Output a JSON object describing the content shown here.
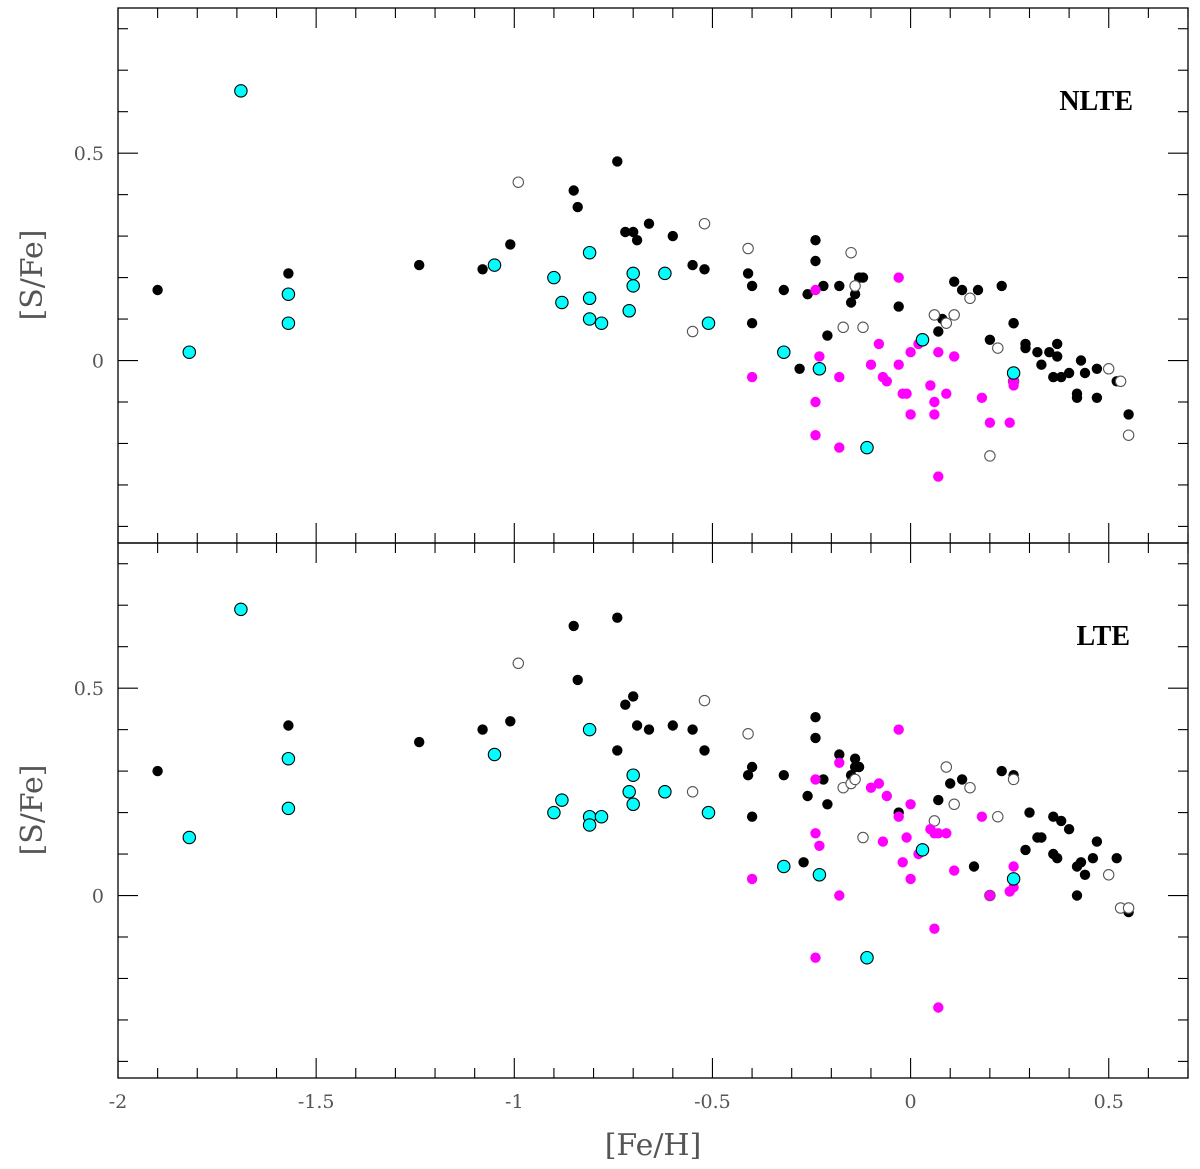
{
  "chart_data": [
    {
      "type": "scatter",
      "panel_label": "NLTE",
      "xlabel": "[Fe/H]",
      "ylabel": "[S/Fe]",
      "xlim": [
        -2.0,
        0.7
      ],
      "ylim": [
        -0.44,
        0.85
      ],
      "xticks": [
        "-2",
        "-1.5",
        "-1",
        "-0.5",
        "0",
        "0.5"
      ],
      "yticks": [
        "0",
        "0.5"
      ],
      "series": [
        {
          "name": "black-filled",
          "color": "#000000",
          "x": [
            -1.9,
            -1.57,
            -1.24,
            -1.08,
            -1.01,
            -0.85,
            -0.84,
            -0.74,
            -0.72,
            -0.7,
            -0.69,
            -0.66,
            -0.6,
            -0.55,
            -0.52,
            -0.41,
            -0.4,
            -0.4,
            -0.32,
            -0.28,
            -0.26,
            -0.24,
            -0.24,
            -0.22,
            -0.21,
            -0.18,
            -0.15,
            -0.14,
            -0.14,
            -0.13,
            -0.12,
            -0.03,
            0.07,
            0.08,
            0.11,
            0.13,
            0.17,
            0.2,
            0.23,
            0.26,
            0.26,
            0.29,
            0.29,
            0.32,
            0.33,
            0.35,
            0.36,
            0.37,
            0.37,
            0.38,
            0.4,
            0.42,
            0.42,
            0.43,
            0.44,
            0.47,
            0.47,
            0.52,
            0.55
          ],
          "y": [
            0.17,
            0.21,
            0.23,
            0.22,
            0.28,
            0.41,
            0.37,
            0.48,
            0.31,
            0.31,
            0.29,
            0.33,
            0.3,
            0.23,
            0.22,
            0.21,
            0.18,
            0.09,
            0.17,
            -0.02,
            0.16,
            0.29,
            0.24,
            0.18,
            0.06,
            0.18,
            0.14,
            0.18,
            0.16,
            0.2,
            0.2,
            0.13,
            0.07,
            0.1,
            0.19,
            0.17,
            0.17,
            0.05,
            0.18,
            0.09,
            0.09,
            0.04,
            0.03,
            0.02,
            -0.01,
            0.02,
            -0.04,
            0.04,
            0.01,
            -0.04,
            -0.03,
            -0.08,
            -0.09,
            0.0,
            -0.03,
            -0.02,
            -0.09,
            -0.05,
            -0.13
          ]
        },
        {
          "name": "open",
          "color": "#ffffff",
          "x": [
            -0.99,
            -0.52,
            -0.55,
            -0.41,
            -0.17,
            -0.15,
            -0.14,
            -0.12,
            0.06,
            0.09,
            0.11,
            0.15,
            0.2,
            0.22,
            0.26,
            0.5,
            0.53,
            0.55
          ],
          "y": [
            0.43,
            0.33,
            0.07,
            0.27,
            0.08,
            0.26,
            0.18,
            0.08,
            0.11,
            0.09,
            0.11,
            0.15,
            -0.23,
            0.03,
            -0.05,
            -0.02,
            -0.05,
            -0.18
          ],
          "stroke": "#555555"
        },
        {
          "name": "magenta",
          "color": "#ff00ff",
          "x": [
            -0.4,
            -0.24,
            -0.24,
            -0.24,
            -0.23,
            -0.18,
            -0.18,
            -0.1,
            -0.08,
            -0.07,
            -0.06,
            -0.03,
            -0.02,
            -0.03,
            -0.01,
            0.0,
            0.0,
            0.02,
            0.05,
            0.06,
            0.06,
            0.07,
            0.07,
            0.09,
            0.11,
            0.18,
            0.2,
            0.26,
            0.26,
            0.25
          ],
          "y": [
            -0.04,
            0.17,
            -0.1,
            -0.18,
            0.01,
            -0.04,
            -0.21,
            -0.01,
            0.04,
            -0.04,
            -0.05,
            0.2,
            -0.08,
            -0.01,
            -0.08,
            0.02,
            -0.13,
            0.04,
            -0.06,
            -0.1,
            -0.13,
            0.02,
            -0.28,
            -0.08,
            0.01,
            -0.09,
            -0.15,
            -0.05,
            -0.06,
            -0.15
          ]
        },
        {
          "name": "cyan",
          "color": "#00ffff",
          "x": [
            -1.82,
            -1.69,
            -1.57,
            -1.57,
            -1.05,
            -0.9,
            -0.88,
            -0.81,
            -0.81,
            -0.81,
            -0.78,
            -0.71,
            -0.7,
            -0.7,
            -0.62,
            -0.51,
            -0.32,
            -0.23,
            -0.11,
            0.03,
            0.26
          ],
          "y": [
            0.02,
            0.65,
            0.16,
            0.09,
            0.23,
            0.2,
            0.14,
            0.26,
            0.15,
            0.1,
            0.09,
            0.12,
            0.21,
            0.18,
            0.21,
            0.09,
            0.02,
            -0.02,
            -0.21,
            0.05,
            -0.03
          ]
        }
      ]
    },
    {
      "type": "scatter",
      "panel_label": "LTE",
      "xlabel": "[Fe/H]",
      "ylabel": "[S/Fe]",
      "xlim": [
        -2.0,
        0.7
      ],
      "ylim": [
        -0.44,
        0.85
      ],
      "xticks": [
        "-2",
        "-1.5",
        "-1",
        "-0.5",
        "0",
        "0.5"
      ],
      "yticks": [
        "0",
        "0.5"
      ],
      "series": [
        {
          "name": "black-filled",
          "color": "#000000",
          "x": [
            -1.9,
            -1.57,
            -1.24,
            -1.08,
            -1.01,
            -0.85,
            -0.84,
            -0.74,
            -0.74,
            -0.72,
            -0.7,
            -0.69,
            -0.66,
            -0.6,
            -0.55,
            -0.52,
            -0.41,
            -0.4,
            -0.4,
            -0.32,
            -0.27,
            -0.26,
            -0.24,
            -0.24,
            -0.22,
            -0.21,
            -0.18,
            -0.15,
            -0.14,
            -0.14,
            -0.13,
            -0.03,
            0.07,
            0.1,
            0.13,
            0.16,
            0.23,
            0.26,
            0.3,
            0.29,
            0.32,
            0.33,
            0.36,
            0.36,
            0.37,
            0.38,
            0.4,
            0.42,
            0.42,
            0.43,
            0.44,
            0.46,
            0.47,
            0.52,
            0.55
          ],
          "y": [
            0.3,
            0.41,
            0.37,
            0.4,
            0.42,
            0.65,
            0.52,
            0.67,
            0.35,
            0.46,
            0.48,
            0.41,
            0.4,
            0.41,
            0.4,
            0.35,
            0.29,
            0.31,
            0.19,
            0.29,
            0.08,
            0.24,
            0.43,
            0.38,
            0.28,
            0.22,
            0.34,
            0.29,
            0.33,
            0.31,
            0.31,
            0.2,
            0.23,
            0.27,
            0.28,
            0.07,
            0.3,
            0.29,
            0.2,
            0.11,
            0.14,
            0.14,
            0.19,
            0.1,
            0.09,
            0.18,
            0.16,
            0.0,
            0.07,
            0.08,
            0.05,
            0.09,
            0.13,
            0.09,
            -0.04
          ]
        },
        {
          "name": "open",
          "color": "#ffffff",
          "x": [
            -0.99,
            -0.52,
            -0.55,
            -0.41,
            -0.17,
            -0.15,
            -0.14,
            -0.12,
            0.06,
            0.09,
            0.11,
            0.15,
            0.2,
            0.22,
            0.26,
            0.5,
            0.53,
            0.55
          ],
          "y": [
            0.56,
            0.47,
            0.25,
            0.39,
            0.26,
            0.27,
            0.28,
            0.14,
            0.18,
            0.31,
            0.22,
            0.26,
            0.0,
            0.19,
            0.28,
            0.05,
            -0.03,
            -0.03
          ],
          "stroke": "#555555"
        },
        {
          "name": "magenta",
          "color": "#ff00ff",
          "x": [
            -0.4,
            -0.24,
            -0.24,
            -0.24,
            -0.23,
            -0.18,
            -0.18,
            -0.1,
            -0.08,
            -0.07,
            -0.06,
            -0.03,
            -0.02,
            -0.03,
            -0.01,
            0.0,
            0.0,
            0.02,
            0.05,
            0.06,
            0.06,
            0.07,
            0.07,
            0.09,
            0.11,
            0.18,
            0.2,
            0.26,
            0.26,
            0.25
          ],
          "y": [
            0.04,
            0.28,
            0.15,
            -0.15,
            0.12,
            0.32,
            0.0,
            0.26,
            0.27,
            0.13,
            0.24,
            0.4,
            0.08,
            0.19,
            0.14,
            0.22,
            0.04,
            0.1,
            0.16,
            0.15,
            -0.08,
            0.15,
            -0.27,
            0.15,
            0.06,
            0.19,
            0.0,
            0.07,
            0.02,
            0.01
          ]
        },
        {
          "name": "cyan",
          "color": "#00ffff",
          "x": [
            -1.82,
            -1.69,
            -1.57,
            -1.57,
            -1.05,
            -0.9,
            -0.88,
            -0.81,
            -0.81,
            -0.81,
            -0.78,
            -0.71,
            -0.7,
            -0.7,
            -0.62,
            -0.51,
            -0.32,
            -0.23,
            -0.11,
            0.03,
            0.26
          ],
          "y": [
            0.14,
            0.69,
            0.33,
            0.21,
            0.34,
            0.2,
            0.23,
            0.4,
            0.19,
            0.17,
            0.19,
            0.25,
            0.29,
            0.22,
            0.25,
            0.2,
            0.07,
            0.05,
            -0.15,
            0.11,
            0.04
          ]
        }
      ]
    }
  ]
}
